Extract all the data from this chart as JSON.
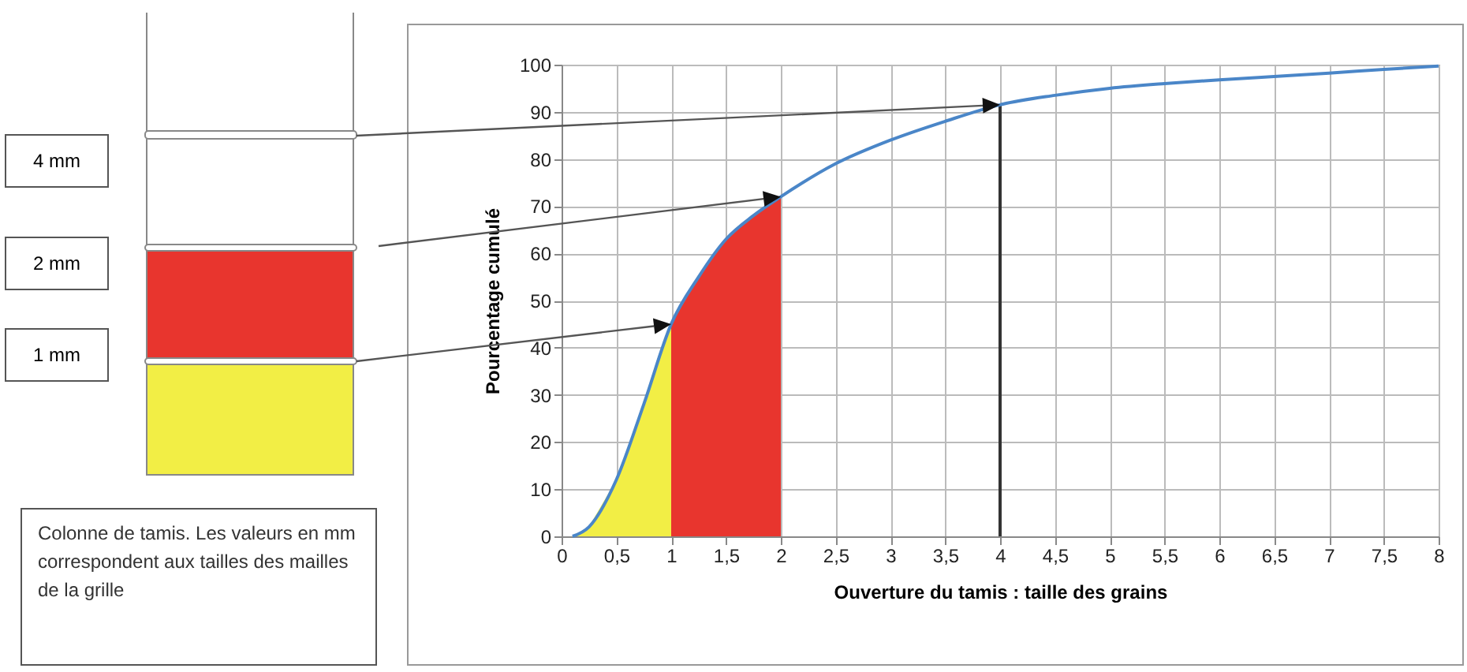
{
  "chart_data": {
    "type": "line",
    "xlabel": "Ouverture du tamis : taille des grains",
    "ylabel": "Pourcentage cumulé",
    "xlim": [
      0,
      8
    ],
    "ylim": [
      0,
      100
    ],
    "xticks": [
      0,
      {
        "value": 0.5,
        "label": "0,5"
      },
      1,
      {
        "value": 1.5,
        "label": "1,5"
      },
      2,
      {
        "value": 2.5,
        "label": "2,5"
      },
      3,
      {
        "value": 3.5,
        "label": "3,5"
      },
      4,
      {
        "value": 4.5,
        "label": "4,5"
      },
      5,
      {
        "value": 5.5,
        "label": "5,5"
      },
      6,
      {
        "value": 6.5,
        "label": "6,5"
      },
      7,
      {
        "value": 7.5,
        "label": "7,5"
      },
      8
    ],
    "yticks": [
      0,
      10,
      20,
      30,
      40,
      50,
      60,
      70,
      80,
      90,
      100
    ],
    "grid": true,
    "series": [
      {
        "type": "area",
        "color": "#f2ee45",
        "x": [
          0.1,
          0.25,
          0.5,
          0.75,
          1
        ],
        "values": [
          0,
          2,
          12,
          28,
          45
        ]
      },
      {
        "type": "area",
        "color": "#e8352e",
        "x": [
          1,
          1.25,
          1.5,
          1.75,
          2
        ],
        "values": [
          45,
          55,
          63,
          68,
          72
        ]
      },
      {
        "type": "line",
        "color": "#333333",
        "x": [
          4,
          4
        ],
        "values": [
          0,
          91.5
        ]
      },
      {
        "color": "#4a86c8",
        "x": [
          0.1,
          0.25,
          0.5,
          0.75,
          1,
          1.25,
          1.5,
          1.75,
          2,
          2.5,
          3,
          3.5,
          4,
          4.5,
          5,
          5.5,
          6,
          6.5,
          7,
          7.5,
          8
        ],
        "values": [
          0,
          2,
          12,
          28,
          45,
          55,
          63,
          68,
          72,
          79,
          84,
          88,
          91.5,
          93.5,
          95,
          96,
          96.8,
          97.5,
          98.2,
          99,
          99.7
        ]
      }
    ],
    "annotations": [
      "Colonne de tamis. Les valeurs en mm correspondent aux tailles des mailles de la grille",
      "4 mm",
      "2 mm",
      "1 mm"
    ]
  }
}
